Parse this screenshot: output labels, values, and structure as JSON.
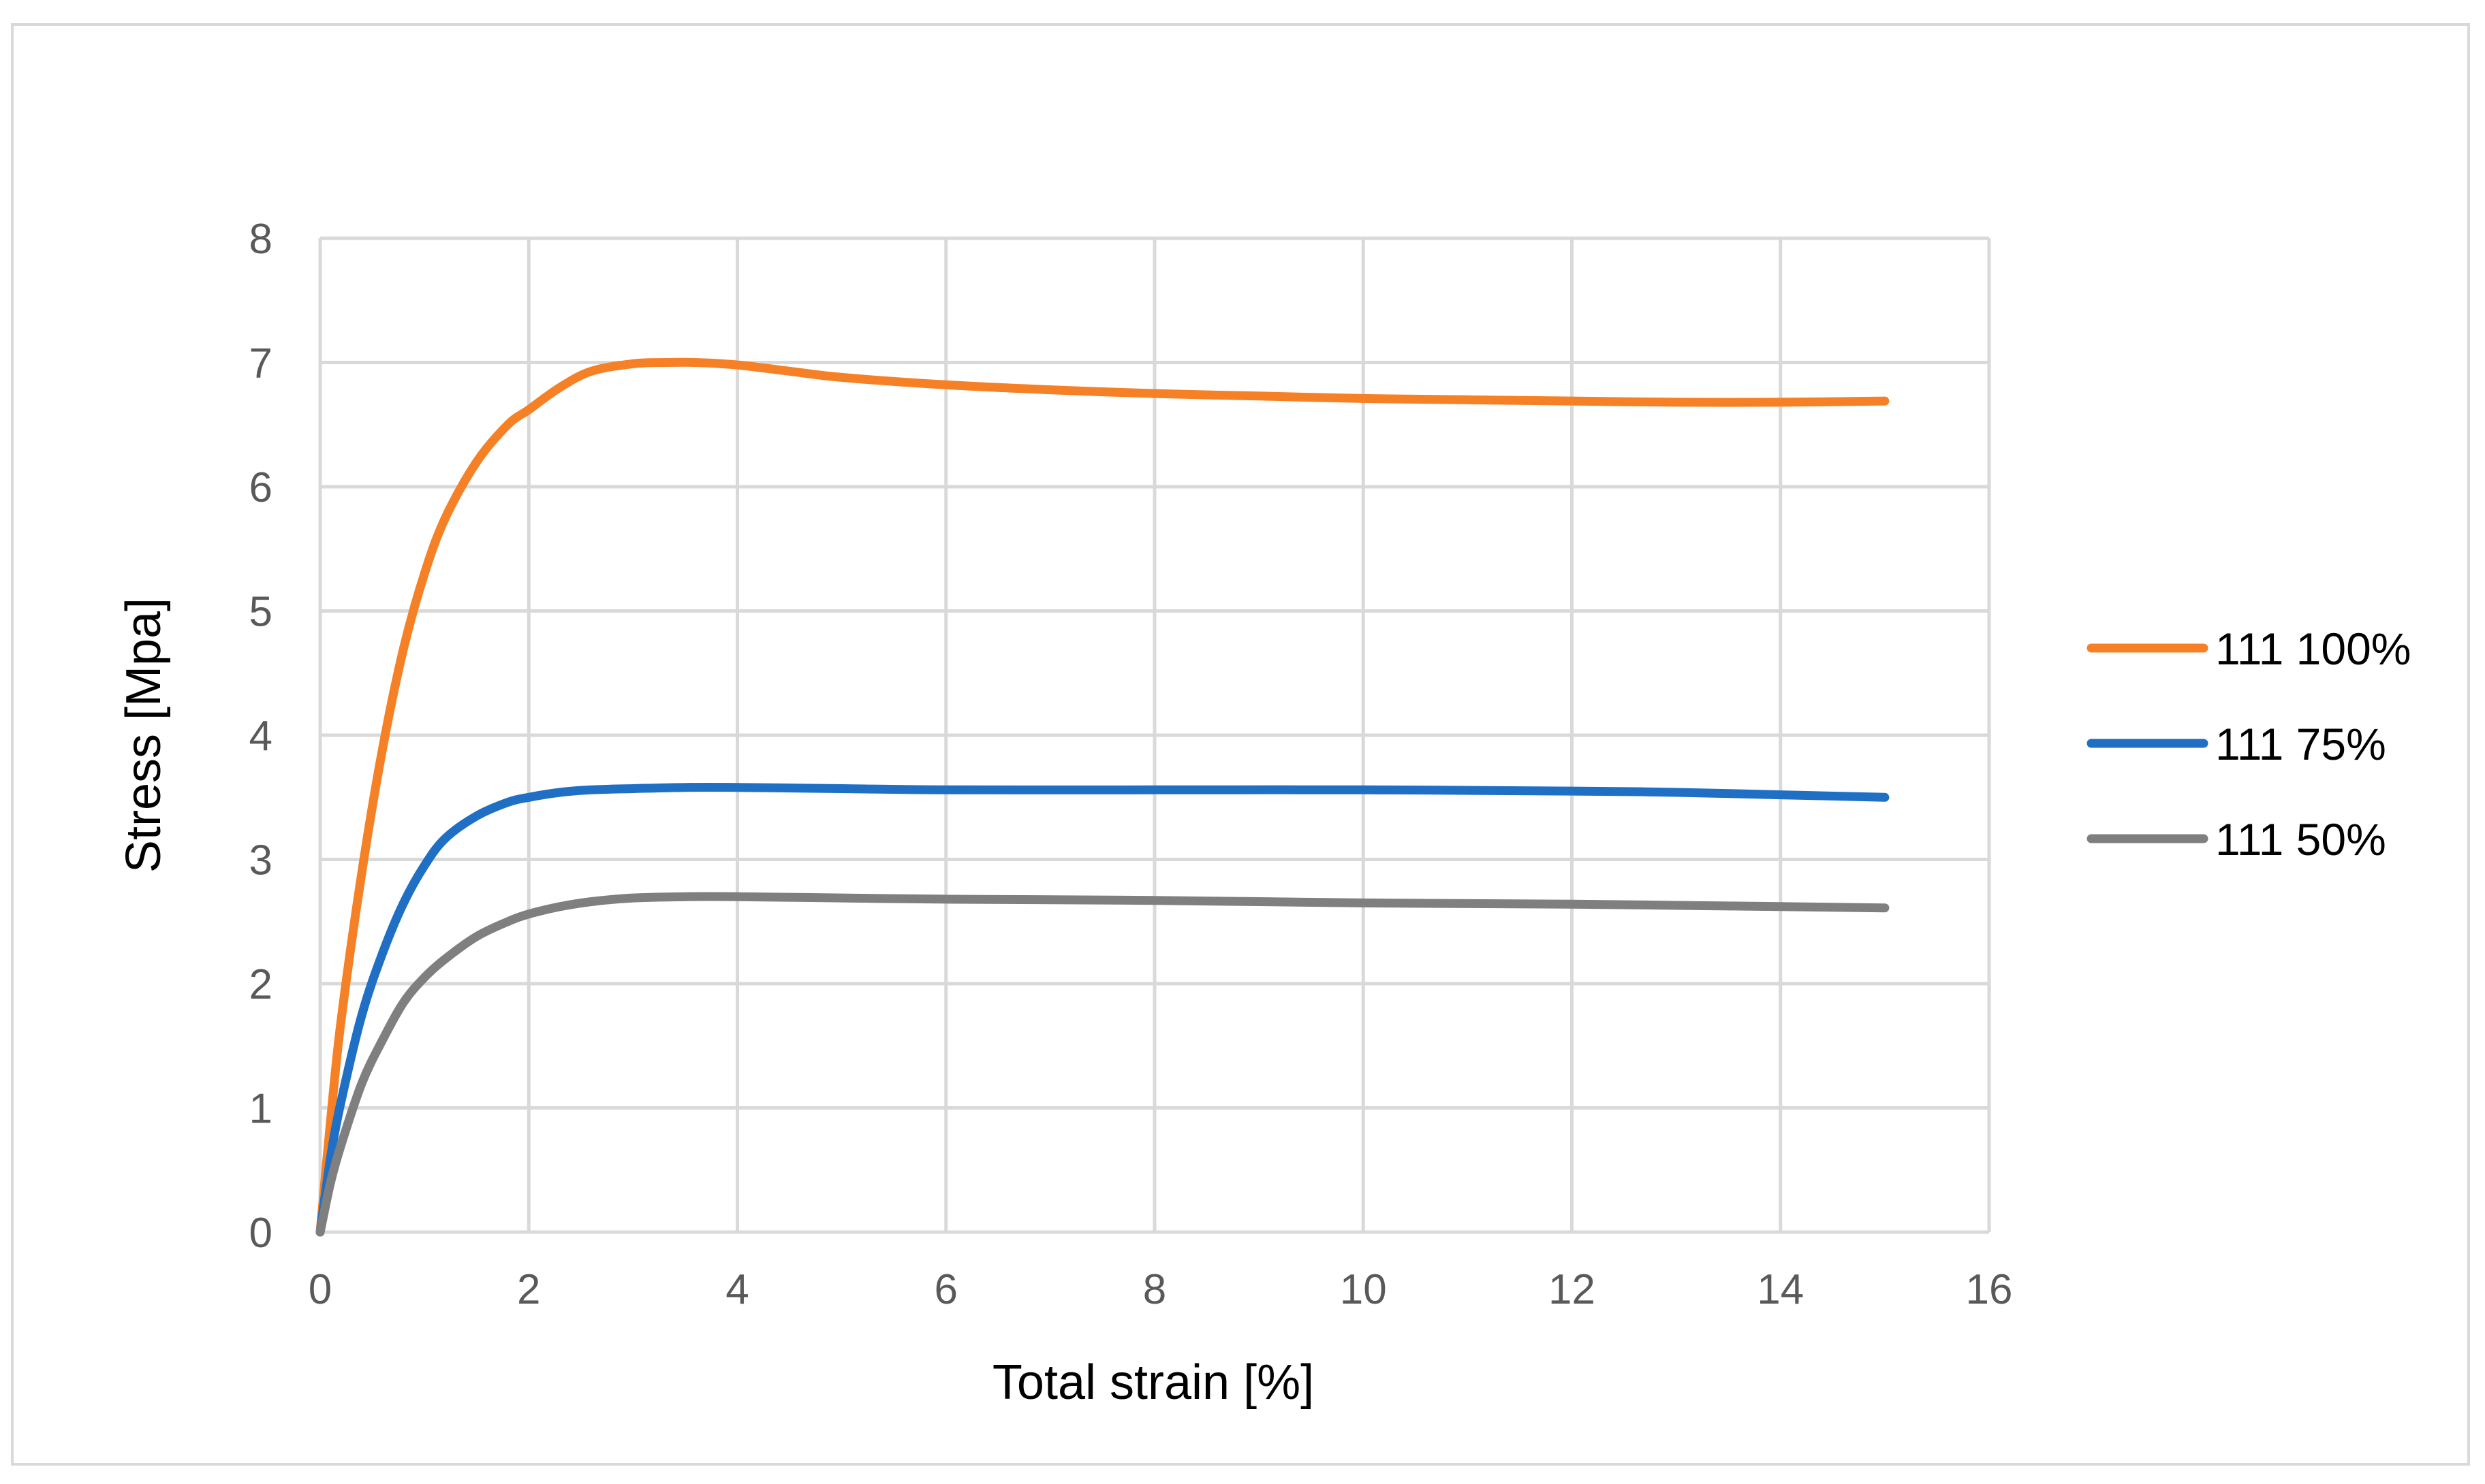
{
  "chart_data": {
    "type": "line",
    "title": "",
    "xlabel": "Total strain [%]",
    "ylabel": "Stress [Mpa]",
    "xlim": [
      0,
      16
    ],
    "ylim": [
      0,
      8
    ],
    "xticks": [
      "0",
      "2",
      "4",
      "6",
      "8",
      "10",
      "12",
      "14",
      "16"
    ],
    "yticks": [
      "0",
      "1",
      "2",
      "3",
      "4",
      "5",
      "6",
      "7",
      "8"
    ],
    "grid": true,
    "legend_position": "right",
    "series": [
      {
        "name": "111 100%",
        "color": "#F58025",
        "x": [
          0,
          0.1,
          0.2,
          0.4,
          0.6,
          0.8,
          1.0,
          1.2,
          1.5,
          1.8,
          2.0,
          2.3,
          2.6,
          3.0,
          3.3,
          3.6,
          4.0,
          4.5,
          5.0,
          6.0,
          7.0,
          8.0,
          9.0,
          10.0,
          11.0,
          12.0,
          13.0,
          14.0,
          15.0
        ],
        "y": [
          0,
          0.9,
          1.7,
          2.9,
          3.9,
          4.7,
          5.3,
          5.75,
          6.2,
          6.5,
          6.62,
          6.8,
          6.93,
          6.99,
          7.0,
          7.0,
          6.98,
          6.93,
          6.88,
          6.82,
          6.78,
          6.75,
          6.73,
          6.71,
          6.7,
          6.69,
          6.68,
          6.68,
          6.69
        ]
      },
      {
        "name": "111 75%",
        "color": "#1F6FC5",
        "x": [
          0,
          0.1,
          0.2,
          0.4,
          0.6,
          0.8,
          1.0,
          1.2,
          1.5,
          1.8,
          2.0,
          2.3,
          2.6,
          3.0,
          3.5,
          4.0,
          5.0,
          6.0,
          8.0,
          10.0,
          12.0,
          13.0,
          14.0,
          15.0
        ],
        "y": [
          0,
          0.6,
          1.05,
          1.75,
          2.25,
          2.65,
          2.95,
          3.17,
          3.35,
          3.46,
          3.5,
          3.54,
          3.56,
          3.57,
          3.58,
          3.58,
          3.57,
          3.56,
          3.56,
          3.56,
          3.55,
          3.54,
          3.52,
          3.5
        ]
      },
      {
        "name": "111 50%",
        "color": "#7F7F7F",
        "x": [
          0,
          0.1,
          0.2,
          0.4,
          0.6,
          0.8,
          1.0,
          1.2,
          1.5,
          1.8,
          2.0,
          2.3,
          2.6,
          3.0,
          3.5,
          4.0,
          5.0,
          6.0,
          8.0,
          10.0,
          12.0,
          13.0,
          14.0,
          15.0
        ],
        "y": [
          0,
          0.4,
          0.7,
          1.2,
          1.55,
          1.85,
          2.05,
          2.2,
          2.38,
          2.5,
          2.56,
          2.62,
          2.66,
          2.69,
          2.7,
          2.7,
          2.69,
          2.68,
          2.67,
          2.65,
          2.64,
          2.63,
          2.62,
          2.61
        ]
      }
    ]
  }
}
